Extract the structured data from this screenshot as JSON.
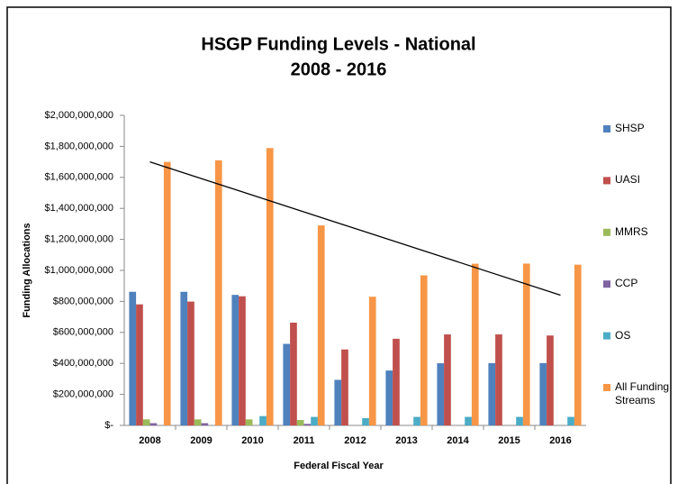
{
  "chart_data": {
    "type": "bar",
    "title": "HSGP Funding Levels - National",
    "subtitle": "2008 - 2016",
    "x_label": "Federal Fiscal Year",
    "y_label": "Funding Allocations",
    "categories": [
      "2008",
      "2009",
      "2010",
      "2011",
      "2012",
      "2013",
      "2014",
      "2015",
      "2016"
    ],
    "series": [
      {
        "name": "SHSP",
        "color": "#4f81bd",
        "values": [
          862000000,
          862000000,
          842000000,
          526000000,
          294000000,
          354000000,
          401000000,
          402000000,
          402000000
        ]
      },
      {
        "name": "UASI",
        "color": "#c0504d",
        "values": [
          781000000,
          799000000,
          833000000,
          663000000,
          490000000,
          559000000,
          587000000,
          587000000,
          580000000
        ]
      },
      {
        "name": "MMRS",
        "color": "#9bbb59",
        "values": [
          39000000,
          39000000,
          39000000,
          35000000,
          0,
          0,
          0,
          0,
          0
        ]
      },
      {
        "name": "CCP",
        "color": "#8064a2",
        "values": [
          14500000,
          14500000,
          0,
          10000000,
          0,
          0,
          0,
          0,
          0
        ]
      },
      {
        "name": "OS",
        "color": "#4bacc6",
        "values": [
          0,
          0,
          60000000,
          55000000,
          47000000,
          55000000,
          55000000,
          55000000,
          55000000
        ]
      },
      {
        "name": "All Funding Streams",
        "color": "#f79646",
        "values": [
          1700000000,
          1710000000,
          1789000000,
          1290000000,
          830000000,
          968000000,
          1043000000,
          1044000000,
          1037000000
        ]
      }
    ],
    "trendline": {
      "color": "#000000",
      "values": [
        1700000000,
        840000000
      ]
    },
    "ylim": [
      0,
      2000000000
    ],
    "yticks": [
      {
        "value": 0,
        "label": "$-"
      },
      {
        "value": 200000000,
        "label": "$200,000,000"
      },
      {
        "value": 400000000,
        "label": "$400,000,000"
      },
      {
        "value": 600000000,
        "label": "$600,000,000"
      },
      {
        "value": 800000000,
        "label": "$800,000,000"
      },
      {
        "value": 1000000000,
        "label": "$1,000,000,000"
      },
      {
        "value": 1200000000,
        "label": "$1,200,000,000"
      },
      {
        "value": 1400000000,
        "label": "$1,400,000,000"
      },
      {
        "value": 1600000000,
        "label": "$1,600,000,000"
      },
      {
        "value": 1800000000,
        "label": "$1,800,000,000"
      },
      {
        "value": 2000000000,
        "label": "$2,000,000,000"
      }
    ],
    "grid": false,
    "legend": "right"
  }
}
